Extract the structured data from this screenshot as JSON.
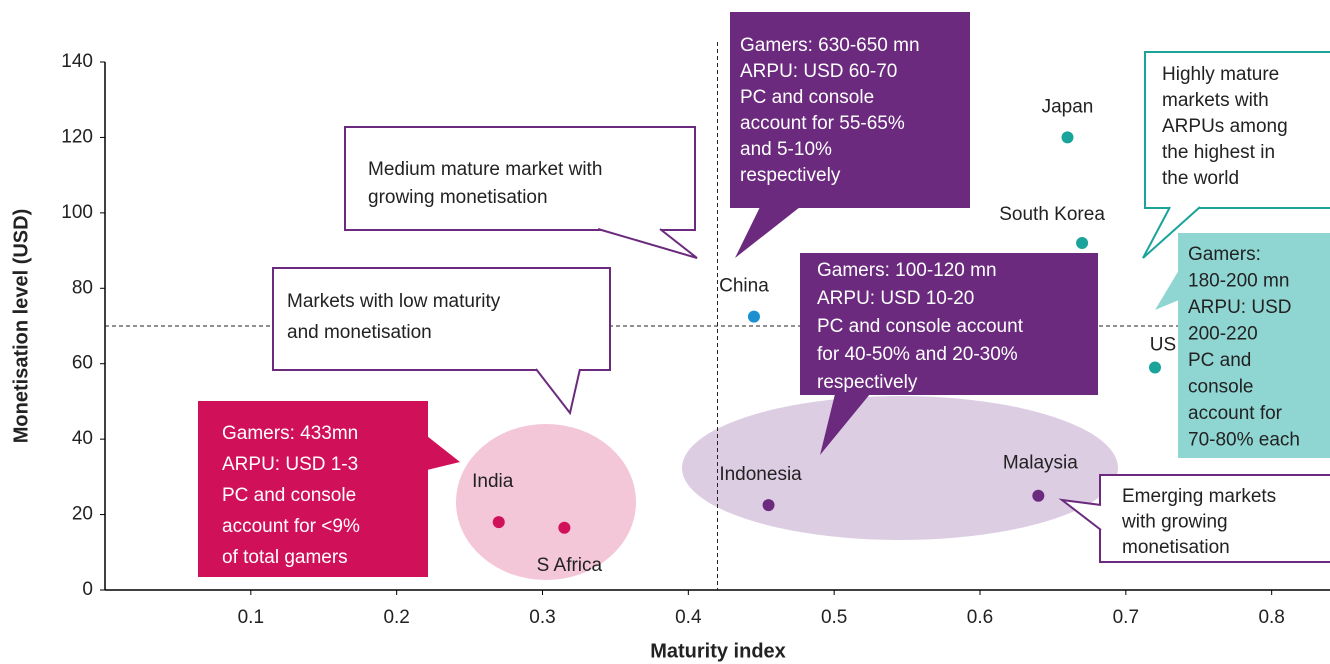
{
  "chart_data": {
    "type": "scatter",
    "xlabel": "Maturity index",
    "ylabel": "Monetisation level (USD)",
    "xlim": [
      0,
      0.84
    ],
    "ylim": [
      0,
      140
    ],
    "xticks": [
      0.1,
      0.2,
      0.3,
      0.4,
      0.5,
      0.6,
      0.7,
      0.8
    ],
    "yticks": [
      0,
      20,
      40,
      60,
      80,
      100,
      120,
      140
    ],
    "reference_lines": {
      "x": 0.42,
      "y": 70
    },
    "points": [
      {
        "label": "Japan",
        "x": 0.66,
        "y": 120,
        "color": "#1aa39a"
      },
      {
        "label": "South Korea",
        "x": 0.67,
        "y": 92,
        "color": "#1aa39a"
      },
      {
        "label": "US",
        "x": 0.72,
        "y": 59,
        "color": "#1aa39a"
      },
      {
        "label": "China",
        "x": 0.445,
        "y": 72.5,
        "color": "#1a90d0"
      },
      {
        "label": "India",
        "x": 0.27,
        "y": 18,
        "color": "#d1105a"
      },
      {
        "label": "S Africa",
        "x": 0.315,
        "y": 16.5,
        "color": "#d1105a"
      },
      {
        "label": "Indonesia",
        "x": 0.455,
        "y": 22.5,
        "color": "#6b2a7e"
      },
      {
        "label": "Malaysia",
        "x": 0.64,
        "y": 25,
        "color": "#6b2a7e"
      }
    ],
    "annotations": [
      {
        "lines": [
          "Medium mature market with",
          "growing monetisation"
        ]
      },
      {
        "lines": [
          "Markets with low maturity",
          "and monetisation"
        ]
      },
      {
        "lines": [
          "Gamers: 433mn",
          "ARPU: USD 1-3",
          "PC and console",
          "account for <9%",
          "of total gamers"
        ]
      },
      {
        "lines": [
          "Gamers: 630-650 mn",
          "ARPU: USD 60-70",
          "PC and console",
          "account for 55-65%",
          "and 5-10%",
          "respectively"
        ]
      },
      {
        "lines": [
          "Gamers: 100-120 mn",
          "ARPU: USD 10-20",
          "PC and console account",
          "for 40-50% and 20-30%",
          "respectively"
        ]
      },
      {
        "lines": [
          "Highly mature",
          "markets with",
          "ARPUs among",
          "the highest in",
          "the world"
        ]
      },
      {
        "lines": [
          "Gamers:",
          "180-200 mn",
          "ARPU: USD",
          "200-220",
          "PC and",
          "console",
          "account for",
          "70-80% each"
        ]
      },
      {
        "lines": [
          "Emerging markets",
          "with growing",
          "monetisation"
        ]
      }
    ]
  }
}
